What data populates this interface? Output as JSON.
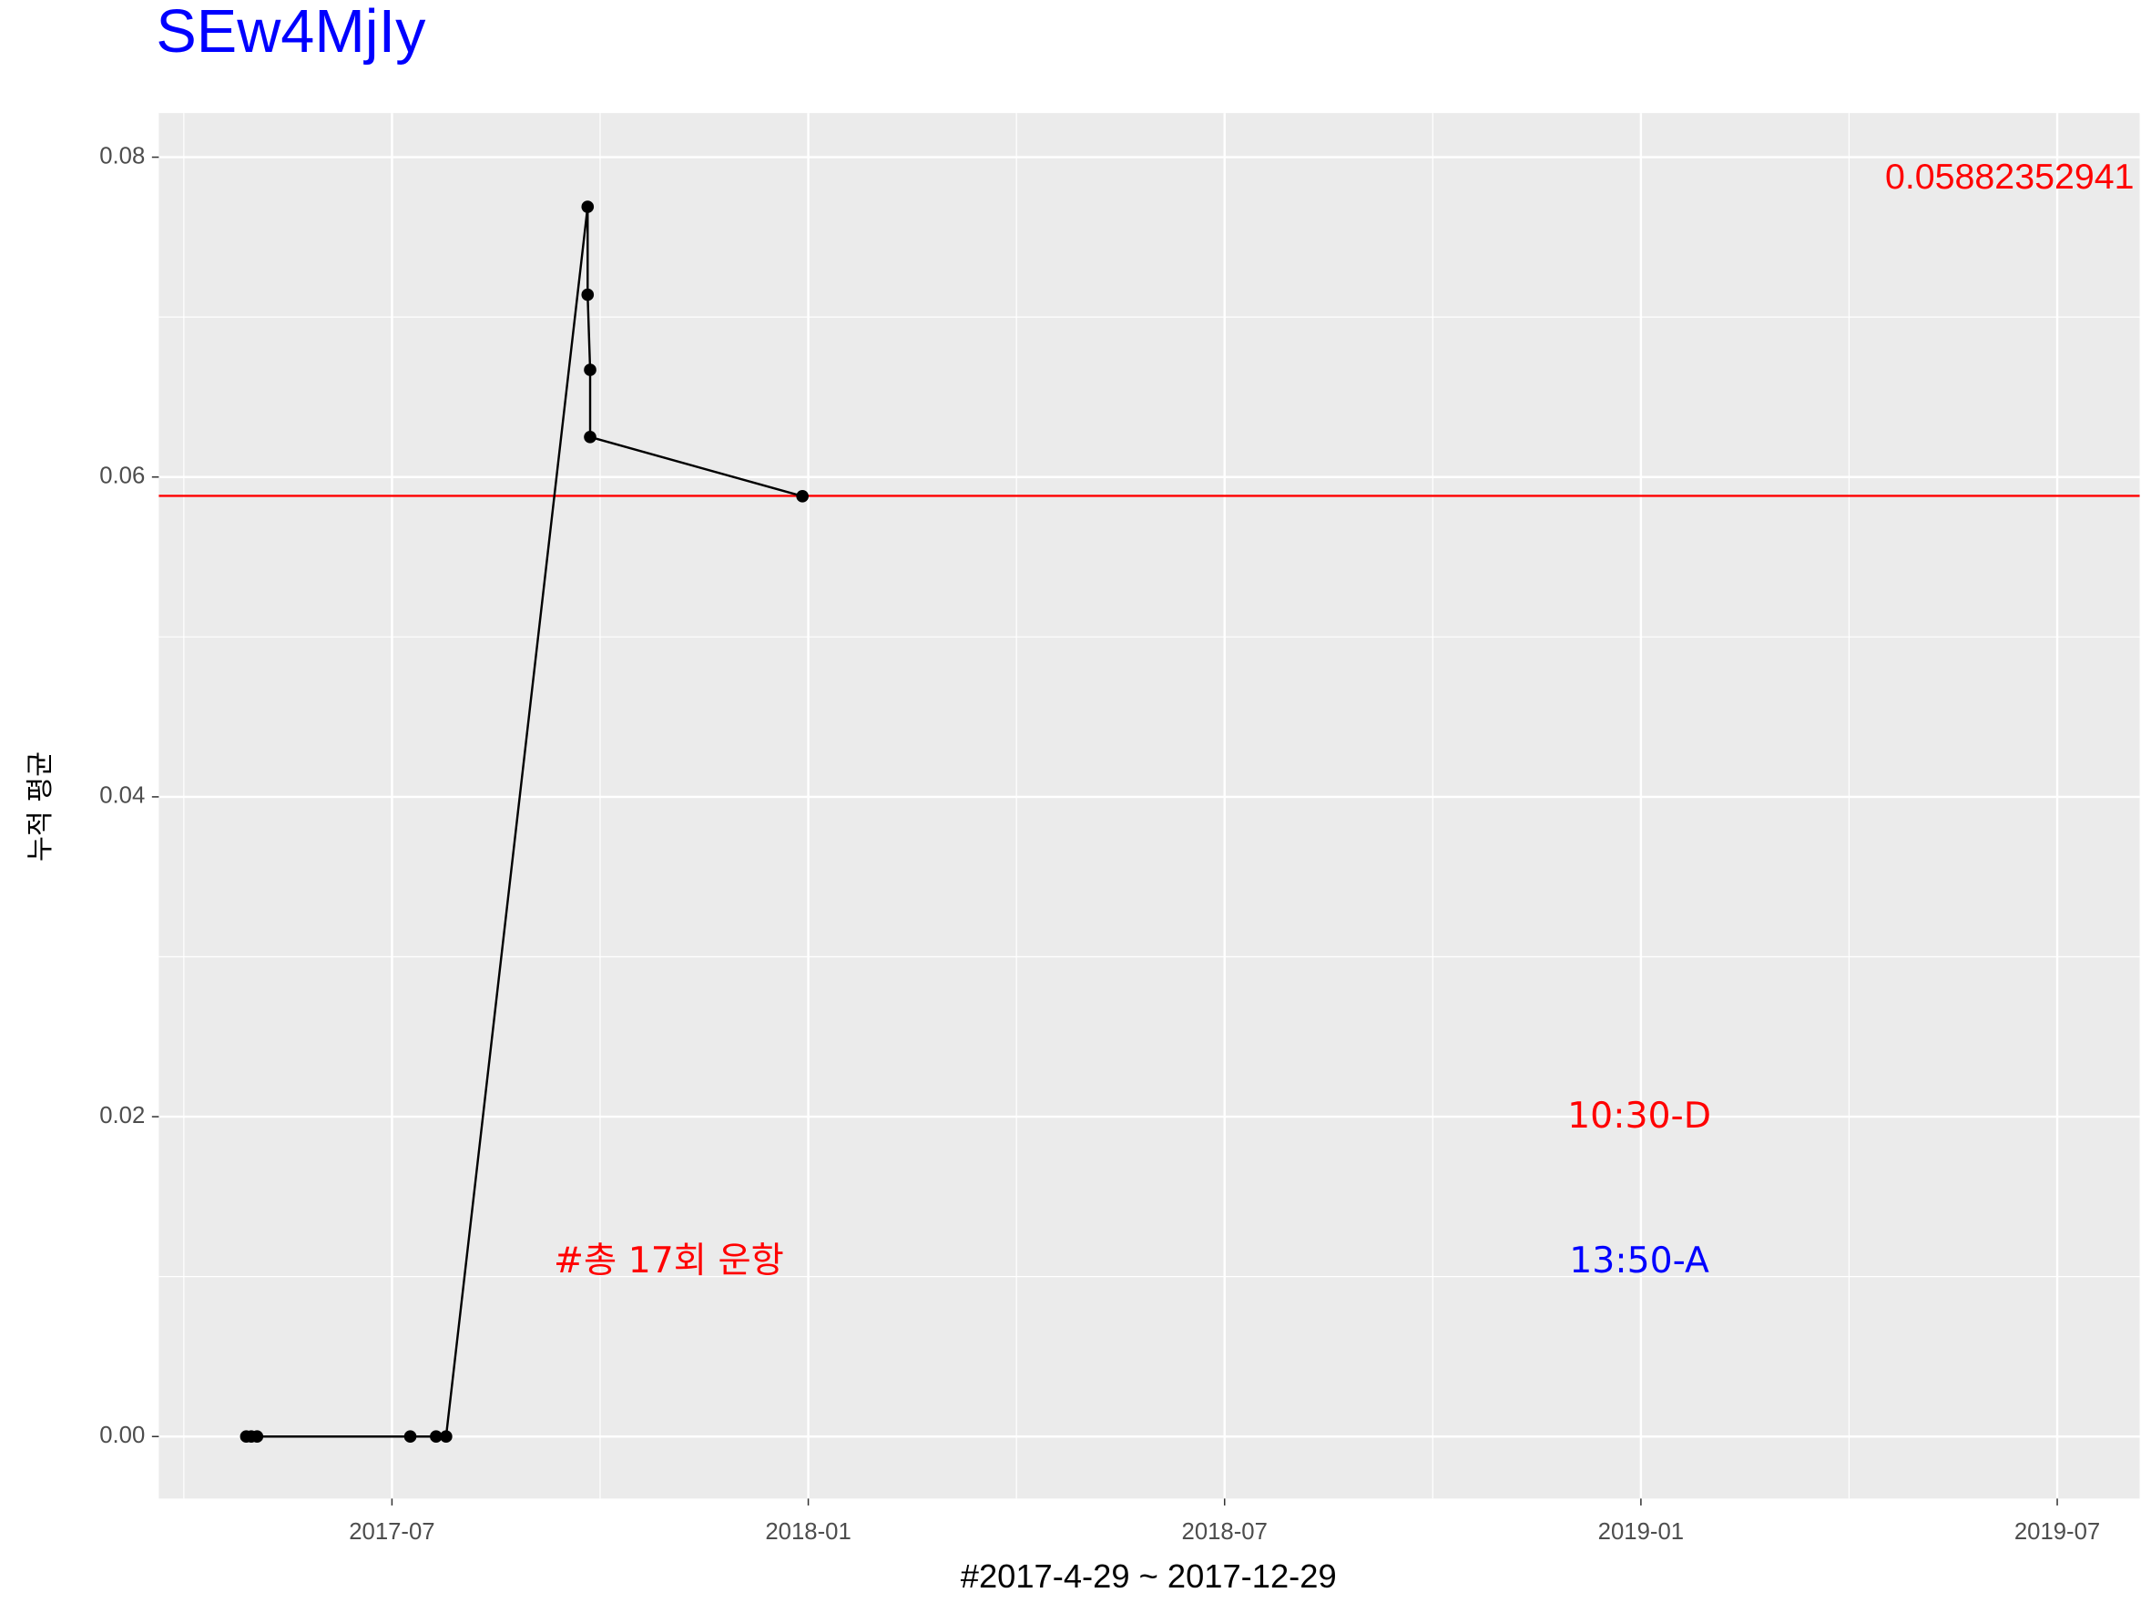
{
  "chart_data": {
    "type": "line",
    "title": "SEw4MjIy",
    "x_label": "#2017-4-29 ~ 2017-12-29",
    "y_label": "누적 평균",
    "x": [
      2017.325,
      2017.331,
      2017.338,
      2017.522,
      2017.553,
      2017.565,
      2017.735,
      2017.735,
      2017.738,
      2017.738,
      2017.993
    ],
    "series": [
      {
        "color": "#000000",
        "values": [
          0,
          0,
          0,
          0,
          0,
          0,
          0.0769,
          0.0714,
          0.0667,
          0.0625,
          0.0588
        ]
      }
    ],
    "xlim": [
      2017.22,
      2019.599
    ],
    "xticks": [
      {
        "value": 2017.5,
        "label": "2017-07"
      },
      {
        "value": 2018.0,
        "label": "2018-01"
      },
      {
        "value": 2018.5,
        "label": "2018-07"
      },
      {
        "value": 2019.0,
        "label": "2019-01"
      },
      {
        "value": 2019.5,
        "label": "2019-07"
      }
    ],
    "ylim": [
      -0.00388,
      0.08276
    ],
    "yticks": [
      {
        "value": 0,
        "label": "0.00"
      },
      {
        "value": 0.02,
        "label": "0.02"
      },
      {
        "value": 0.04,
        "label": "0.04"
      },
      {
        "value": 0.06,
        "label": "0.06"
      },
      {
        "value": 0.08,
        "label": "0.08"
      }
    ],
    "grid": true,
    "hline": {
      "value": 0.05882352941,
      "color": "#ff0000"
    },
    "annotations": [
      {
        "text": "10:30-D",
        "color": "#ff0000"
      },
      {
        "text": "13:50-A",
        "color": "#0000ff"
      },
      {
        "text": "#총 17회 운항",
        "color": "#ff0000"
      }
    ]
  }
}
